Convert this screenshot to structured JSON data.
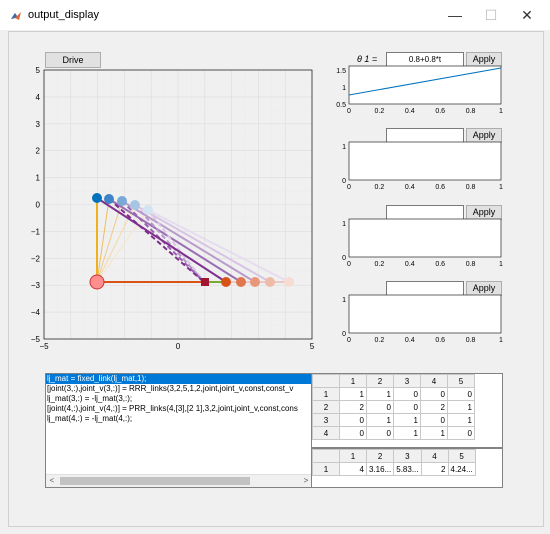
{
  "window": {
    "title": "output_display",
    "minimize_glyph": "—",
    "maximize_glyph": "☐",
    "close_glyph": "✕"
  },
  "drive_button_label": "Drive",
  "main_axes": {
    "x_ticks": [
      "−5",
      "0",
      "5"
    ],
    "y_ticks": [
      "5",
      "4",
      "3",
      "2",
      "1",
      "0",
      "−1",
      "−2",
      "−3",
      "−4",
      "−5"
    ],
    "xlim": [
      -5,
      5
    ],
    "ylim": [
      -5,
      5
    ]
  },
  "control_panels": [
    {
      "label": "θ 1 =",
      "value": "0.8+0.8*t",
      "button": "Apply",
      "y_ticks": [
        "1.5",
        "1",
        "0.5"
      ],
      "x_ticks": [
        "0",
        "0.2",
        "0.4",
        "0.6",
        "0.8",
        "1"
      ],
      "has_line": true
    },
    {
      "label": "",
      "value": "",
      "button": "Apply",
      "y_ticks": [
        "1",
        "0"
      ],
      "x_ticks": [
        "0",
        "0.2",
        "0.4",
        "0.6",
        "0.8",
        "1"
      ],
      "has_line": false
    },
    {
      "label": "",
      "value": "",
      "button": "Apply",
      "y_ticks": [
        "1",
        "0"
      ],
      "x_ticks": [
        "0",
        "0.2",
        "0.4",
        "0.6",
        "0.8",
        "1"
      ],
      "has_line": false
    },
    {
      "label": "",
      "value": "",
      "button": "Apply",
      "y_ticks": [
        "1",
        "0"
      ],
      "x_ticks": [
        "0",
        "0.2",
        "0.4",
        "0.6",
        "0.8",
        "1"
      ],
      "has_line": false
    }
  ],
  "code_list": [
    "lj_mat = fixed_link(lj_mat,1);",
    "[joint(3,:),joint_v(3,:)] = RRR_links(3,2,5,1,2,joint,joint_v,const,const_v",
    "lj_mat(3,:) = -lj_mat(3,:);",
    "[joint(4,:),joint_v(4,:)] = PRR_links(4,[3],[2  1],3,2,joint,joint_v,const,cons",
    "lj_mat(4,:) = -lj_mat(4,:);"
  ],
  "matrix_table": {
    "columns": [
      "1",
      "2",
      "3",
      "4",
      "5"
    ],
    "rows": [
      {
        "label": "1",
        "cells": [
          "1",
          "1",
          "0",
          "0",
          "0"
        ]
      },
      {
        "label": "2",
        "cells": [
          "2",
          "0",
          "0",
          "2",
          "1"
        ]
      },
      {
        "label": "3",
        "cells": [
          "0",
          "1",
          "1",
          "0",
          "1"
        ]
      },
      {
        "label": "4",
        "cells": [
          "0",
          "0",
          "1",
          "1",
          "0"
        ]
      }
    ]
  },
  "length_table": {
    "columns": [
      "1",
      "2",
      "3",
      "4",
      "5"
    ],
    "rows": [
      {
        "label": "1",
        "cells": [
          "4",
          "3.16...",
          "5.83...",
          "2",
          "4.24..."
        ]
      }
    ]
  },
  "colors": {
    "accent_blue": "#0072bd",
    "select_blue": "#0078d7",
    "orange": "#edb120",
    "purple": "#7e2f8e",
    "red_link": "#d95319",
    "green_link": "#77ac30",
    "slider_dark_red": "#a2142f",
    "pink_joint": "#ff8080"
  }
}
